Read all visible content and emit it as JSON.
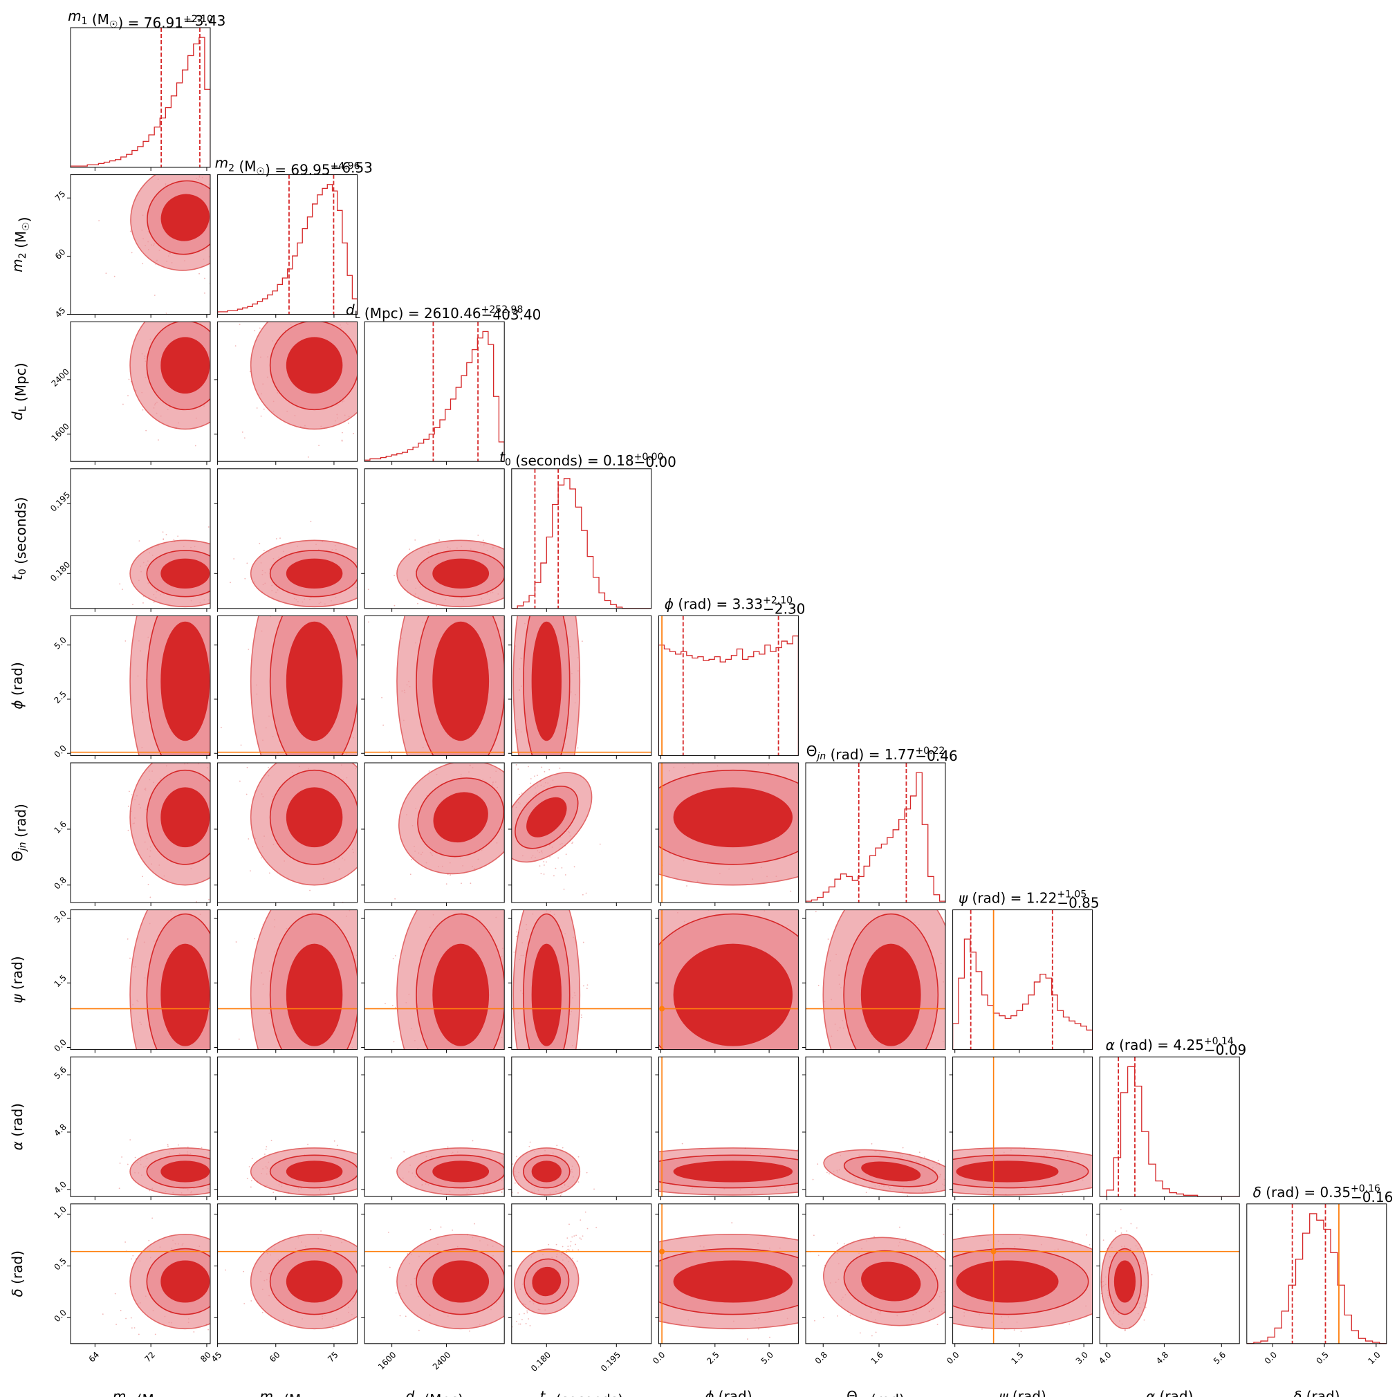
{
  "chart_data": {
    "type": "corner",
    "colors": {
      "posterior": "#d62728",
      "contour_light": "#ec9399",
      "truth": "#ff7f0e",
      "frame": "#000000"
    },
    "params": [
      {
        "key": "m1",
        "label": "m₁ (M☉)",
        "title_value": "76.91",
        "err_plus": "+2.10",
        "err_minus": "−3.43",
        "range": [
          60.5,
          80.5
        ],
        "ticks": [
          64,
          72,
          80
        ],
        "tick_labels": [
          "64",
          "72",
          "80"
        ],
        "median": 76.91,
        "q_low": 73.48,
        "q_high": 79.01,
        "truth": null,
        "hist": [
          0.01,
          0.01,
          0.01,
          0.02,
          0.02,
          0.03,
          0.04,
          0.05,
          0.06,
          0.08,
          0.1,
          0.13,
          0.16,
          0.2,
          0.25,
          0.31,
          0.38,
          0.46,
          0.55,
          0.65,
          0.75,
          0.86,
          0.95,
          1.0,
          0.6
        ]
      },
      {
        "key": "m2",
        "label": "m₂ (M☉)",
        "title_value": "69.95",
        "err_plus": "+4.96",
        "err_minus": "−6.53",
        "range": [
          45,
          81
        ],
        "ticks": [
          45,
          60,
          75
        ],
        "tick_labels": [
          "45",
          "60",
          "75"
        ],
        "median": 69.95,
        "q_low": 63.42,
        "q_high": 74.91,
        "truth": null,
        "hist": [
          0.02,
          0.02,
          0.03,
          0.03,
          0.04,
          0.05,
          0.06,
          0.08,
          0.1,
          0.12,
          0.15,
          0.18,
          0.23,
          0.28,
          0.35,
          0.45,
          0.55,
          0.66,
          0.75,
          0.85,
          0.92,
          0.97,
          1.0,
          0.95,
          0.8,
          0.55,
          0.3,
          0.12
        ]
      },
      {
        "key": "dL",
        "label": "d_L (Mpc)",
        "title_value": "2610.46",
        "err_plus": "+252.98",
        "err_minus": "−403.40",
        "range": [
          1200,
          3250
        ],
        "ticks": [
          1600,
          2400
        ],
        "tick_labels": [
          "1600",
          "2400"
        ],
        "median": 2610.46,
        "q_low": 2207.06,
        "q_high": 2863.44,
        "truth": null,
        "hist": [
          0.01,
          0.02,
          0.02,
          0.03,
          0.04,
          0.05,
          0.06,
          0.07,
          0.09,
          0.11,
          0.14,
          0.17,
          0.21,
          0.26,
          0.32,
          0.4,
          0.48,
          0.57,
          0.66,
          0.76,
          0.86,
          0.95,
          1.0,
          0.9,
          0.5,
          0.15
        ]
      },
      {
        "key": "t0",
        "label": "t₀ (seconds)",
        "title_value": "0.18",
        "err_plus": "+0.00",
        "err_minus": "−0.00",
        "range": [
          0.1725,
          0.2025
        ],
        "ticks": [
          0.18,
          0.195
        ],
        "tick_labels": [
          "0.180",
          "0.195"
        ],
        "median": 0.18,
        "q_low": 0.1775,
        "q_high": 0.1825,
        "truth": null,
        "hist": [
          0.0,
          0.02,
          0.05,
          0.1,
          0.2,
          0.35,
          0.55,
          0.8,
          0.95,
          1.0,
          0.92,
          0.78,
          0.6,
          0.4,
          0.24,
          0.12,
          0.06,
          0.03,
          0.01,
          0.0,
          0.0,
          0.0,
          0.0,
          0.0
        ]
      },
      {
        "key": "phi",
        "label": "ϕ (rad)",
        "title_value": "3.33",
        "err_plus": "+2.10",
        "err_minus": "−2.30",
        "range": [
          -0.1,
          6.35
        ],
        "ticks": [
          0.0,
          2.5,
          5.0
        ],
        "tick_labels": [
          "0.0",
          "2.5",
          "5.0"
        ],
        "median": 3.33,
        "q_low": 1.03,
        "q_high": 5.43,
        "truth": 0.05,
        "hist": [
          0.85,
          0.82,
          0.8,
          0.78,
          0.8,
          0.77,
          0.75,
          0.76,
          0.73,
          0.74,
          0.76,
          0.72,
          0.74,
          0.77,
          0.82,
          0.74,
          0.76,
          0.8,
          0.78,
          0.85,
          0.8,
          0.83,
          0.88,
          0.86,
          0.92
        ]
      },
      {
        "key": "thjn",
        "label": "Θjn (rad)",
        "title_value": "1.77",
        "err_plus": "+0.22",
        "err_minus": "−0.46",
        "range": [
          0.55,
          2.55
        ],
        "ticks": [
          0.8,
          1.6
        ],
        "tick_labels": [
          "0.8",
          "1.6"
        ],
        "median": 1.77,
        "q_low": 1.31,
        "q_high": 1.99,
        "truth": null,
        "hist": [
          0.01,
          0.02,
          0.04,
          0.08,
          0.12,
          0.18,
          0.22,
          0.2,
          0.17,
          0.2,
          0.28,
          0.36,
          0.42,
          0.45,
          0.5,
          0.56,
          0.64,
          0.72,
          0.82,
          1.0,
          0.6,
          0.2,
          0.06,
          0.01
        ]
      },
      {
        "key": "psi",
        "label": "ψ (rad)",
        "title_value": "1.22",
        "err_plus": "+1.05",
        "err_minus": "−0.85",
        "range": [
          -0.05,
          3.2
        ],
        "ticks": [
          0.0,
          1.5,
          3.0
        ],
        "tick_labels": [
          "0.0",
          "1.5",
          "3.0"
        ],
        "median": 1.22,
        "q_low": 0.37,
        "q_high": 2.27,
        "truth": 0.9,
        "hist": [
          0.2,
          0.55,
          0.85,
          0.75,
          0.6,
          0.42,
          0.34,
          0.28,
          0.26,
          0.24,
          0.26,
          0.3,
          0.35,
          0.42,
          0.52,
          0.58,
          0.55,
          0.42,
          0.3,
          0.25,
          0.22,
          0.2,
          0.18,
          0.15
        ]
      },
      {
        "key": "alpha",
        "label": "α (rad)",
        "title_value": "4.25",
        "err_plus": "+0.14",
        "err_minus": "−0.09",
        "range": [
          3.9,
          5.85
        ],
        "ticks": [
          4.0,
          4.8,
          5.6
        ],
        "tick_labels": [
          "4.0",
          "4.8",
          "5.6"
        ],
        "median": 4.25,
        "q_low": 4.16,
        "q_high": 4.39,
        "truth": null,
        "hist": [
          0.0,
          0.05,
          0.3,
          0.8,
          1.0,
          0.85,
          0.5,
          0.25,
          0.12,
          0.06,
          0.03,
          0.02,
          0.01,
          0.01,
          0.0,
          0.0,
          0.0,
          0.0,
          0.0,
          0.0
        ]
      },
      {
        "key": "delta",
        "label": "δ (rad)",
        "title_value": "0.35",
        "err_plus": "+0.16",
        "err_minus": "−0.16",
        "range": [
          -0.25,
          1.1
        ],
        "ticks": [
          0.0,
          0.5,
          1.0
        ],
        "tick_labels": [
          "0.0",
          "0.5",
          "1.0"
        ],
        "median": 0.35,
        "q_low": 0.19,
        "q_high": 0.51,
        "truth": 0.64,
        "hist": [
          0.0,
          0.01,
          0.02,
          0.05,
          0.12,
          0.25,
          0.45,
          0.65,
          0.85,
          1.0,
          0.95,
          0.88,
          0.7,
          0.45,
          0.22,
          0.1,
          0.04,
          0.02,
          0.01,
          0.0
        ]
      }
    ]
  }
}
